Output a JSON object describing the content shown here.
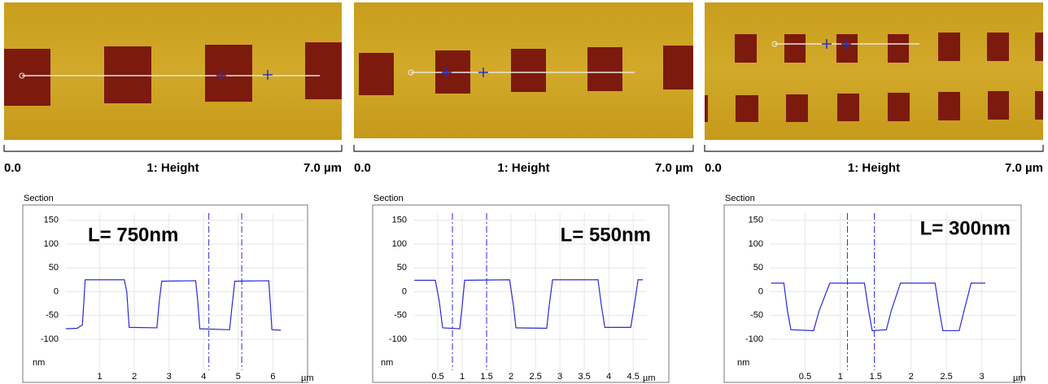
{
  "chart_data": [
    {
      "type": "line",
      "title": "Section",
      "annotation": "L= 750nm",
      "scale_bar": {
        "start": "0.0",
        "label": "1: Height",
        "end": "7.0 µm"
      },
      "xlabel": "µm",
      "ylabel": "nm",
      "color": "#2a2ad8",
      "grid": true,
      "x": [
        0.02,
        0.35,
        0.5,
        0.58,
        1.71,
        1.78,
        1.85,
        2.65,
        2.72,
        2.79,
        3.77,
        3.83,
        3.89,
        4.75,
        4.82,
        4.9,
        5.88,
        5.93,
        5.97,
        6.23
      ],
      "values": [
        -78,
        -77,
        -70,
        25,
        25,
        0,
        -75,
        -76,
        -20,
        22,
        23,
        -20,
        -78,
        -80,
        -30,
        22,
        23,
        -30,
        -80,
        -81
      ],
      "cursors": [
        4.15,
        5.1
      ],
      "xlim": [
        0,
        6.93
      ],
      "xticks": [
        1,
        2,
        3,
        4,
        5,
        6
      ],
      "ylim": [
        -165,
        165
      ],
      "yticks": [
        150,
        100,
        50,
        0,
        -50,
        -100
      ]
    },
    {
      "type": "line",
      "title": "Section",
      "annotation": "L= 550nm",
      "scale_bar": {
        "start": "0.0",
        "label": "1: Height",
        "end": "7.0 µm"
      },
      "xlabel": "µm",
      "ylabel": "nm",
      "color": "#2a2ad8",
      "grid": true,
      "x": [
        0.02,
        0.45,
        0.53,
        0.6,
        0.95,
        1.0,
        1.05,
        1.97,
        2.05,
        2.1,
        2.73,
        2.78,
        2.85,
        3.78,
        3.85,
        3.92,
        4.45,
        4.52,
        4.6,
        4.7
      ],
      "values": [
        24,
        24,
        -20,
        -76,
        -78,
        -30,
        24,
        25,
        -30,
        -76,
        -77,
        -30,
        25,
        25,
        -30,
        -75,
        -75,
        -30,
        25,
        25
      ],
      "cursors": [
        0.8,
        1.5
      ],
      "xlim": [
        0,
        4.78
      ],
      "xticks": [
        0.5,
        1,
        1.5,
        2,
        2.5,
        3,
        3.5,
        4,
        4.5
      ],
      "ylim": [
        -165,
        165
      ],
      "yticks": [
        150,
        100,
        50,
        0,
        -50,
        -100
      ]
    },
    {
      "type": "line",
      "title": "Section",
      "annotation": "L= 300nm",
      "scale_bar": {
        "start": "0.0",
        "label": "1: Height",
        "end": "7.0 µm"
      },
      "xlabel": "µm",
      "ylabel": "nm",
      "color": "#2a2ad8",
      "grid": true,
      "x": [
        0.02,
        0.2,
        0.25,
        0.3,
        0.62,
        0.7,
        0.85,
        1.34,
        1.4,
        1.45,
        1.65,
        1.72,
        1.85,
        2.34,
        2.4,
        2.45,
        2.68,
        2.75,
        2.85,
        3.05
      ],
      "values": [
        18,
        18,
        -40,
        -80,
        -82,
        -40,
        18,
        18,
        -40,
        -82,
        -80,
        -40,
        18,
        18,
        -40,
        -82,
        -82,
        -40,
        18,
        18
      ],
      "cursors": [
        1.1,
        1.48
      ],
      "xlim": [
        0,
        3.5
      ],
      "xticks": [
        0.5,
        1,
        1.5,
        2,
        2.5,
        3
      ],
      "ylim": [
        -165,
        165
      ],
      "yticks": [
        150,
        100,
        50,
        0,
        -50,
        -100
      ]
    }
  ]
}
